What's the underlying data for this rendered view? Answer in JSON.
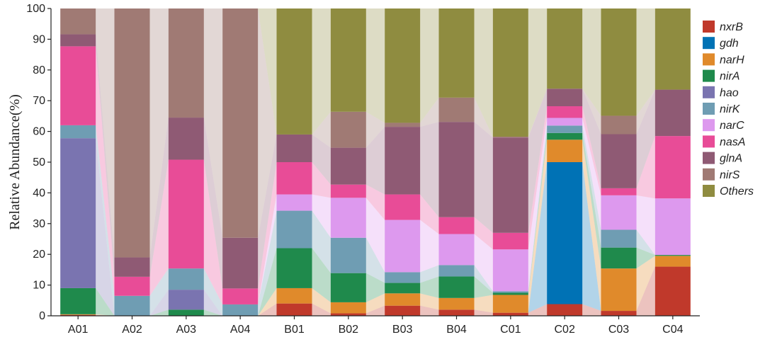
{
  "chart_data": {
    "type": "stacked-bar",
    "ylabel": "Relative Abundance(%)",
    "xlabel": "",
    "ylim": [
      0,
      100
    ],
    "yticks": [
      0,
      10,
      20,
      30,
      40,
      50,
      60,
      70,
      80,
      90,
      100
    ],
    "categories": [
      "A01",
      "A02",
      "A03",
      "A04",
      "B01",
      "B02",
      "B03",
      "B04",
      "C01",
      "C02",
      "C03",
      "C04"
    ],
    "legend_position": "right",
    "grid": false,
    "series": [
      {
        "name": "nxrB",
        "color": "#c0392b",
        "values": [
          0.3,
          0,
          0,
          0,
          4,
          0.8,
          3.3,
          2,
          1,
          3.8,
          1.6,
          16
        ]
      },
      {
        "name": "gdh",
        "color": "#0072b5",
        "values": [
          0,
          0,
          0,
          0,
          0,
          0,
          0,
          0,
          0,
          46.2,
          0,
          0
        ]
      },
      {
        "name": "narH",
        "color": "#e08a2b",
        "values": [
          0.2,
          0,
          0,
          0,
          5,
          3.6,
          4,
          3.8,
          5.8,
          7.3,
          13.8,
          3.5
        ]
      },
      {
        "name": "nirA",
        "color": "#1f8a4c",
        "values": [
          8.5,
          0,
          2,
          0,
          13,
          9.5,
          3.4,
          7,
          0.7,
          2.2,
          6.8,
          0.3
        ]
      },
      {
        "name": "hao",
        "color": "#7a74b0",
        "values": [
          48.8,
          0,
          6.5,
          0,
          0,
          0,
          0,
          0,
          0,
          0,
          0,
          0
        ]
      },
      {
        "name": "nirK",
        "color": "#6f9db3",
        "values": [
          4.2,
          6.5,
          6.9,
          3.7,
          12.2,
          11.5,
          3.5,
          3.7,
          0.5,
          2.4,
          5.8,
          0
        ]
      },
      {
        "name": "narC",
        "color": "#dd99ee",
        "values": [
          0,
          0,
          0,
          0,
          5.3,
          13,
          17,
          10.1,
          13.6,
          2.5,
          11.2,
          18.4
        ]
      },
      {
        "name": "nasA",
        "color": "#e84c97",
        "values": [
          25.7,
          6.2,
          35.4,
          5.2,
          10.5,
          4.3,
          8.3,
          5.5,
          5.4,
          3.8,
          2.3,
          20.3
        ]
      },
      {
        "name": "glnA",
        "color": "#8f5a74",
        "values": [
          3.9,
          6.3,
          13.7,
          16.5,
          9,
          12,
          22,
          31,
          31,
          5.7,
          17.6,
          15.1
        ]
      },
      {
        "name": "nirS",
        "color": "#a07a74",
        "values": [
          8.4,
          81,
          35.5,
          74.6,
          0,
          11.7,
          1.3,
          7.9,
          0.3,
          0,
          6,
          0
        ]
      },
      {
        "name": "Others",
        "color": "#8f8c40",
        "values": [
          0,
          0,
          0,
          0,
          41,
          33.6,
          37.2,
          29,
          41.7,
          26.1,
          34.9,
          26.4
        ]
      }
    ]
  }
}
